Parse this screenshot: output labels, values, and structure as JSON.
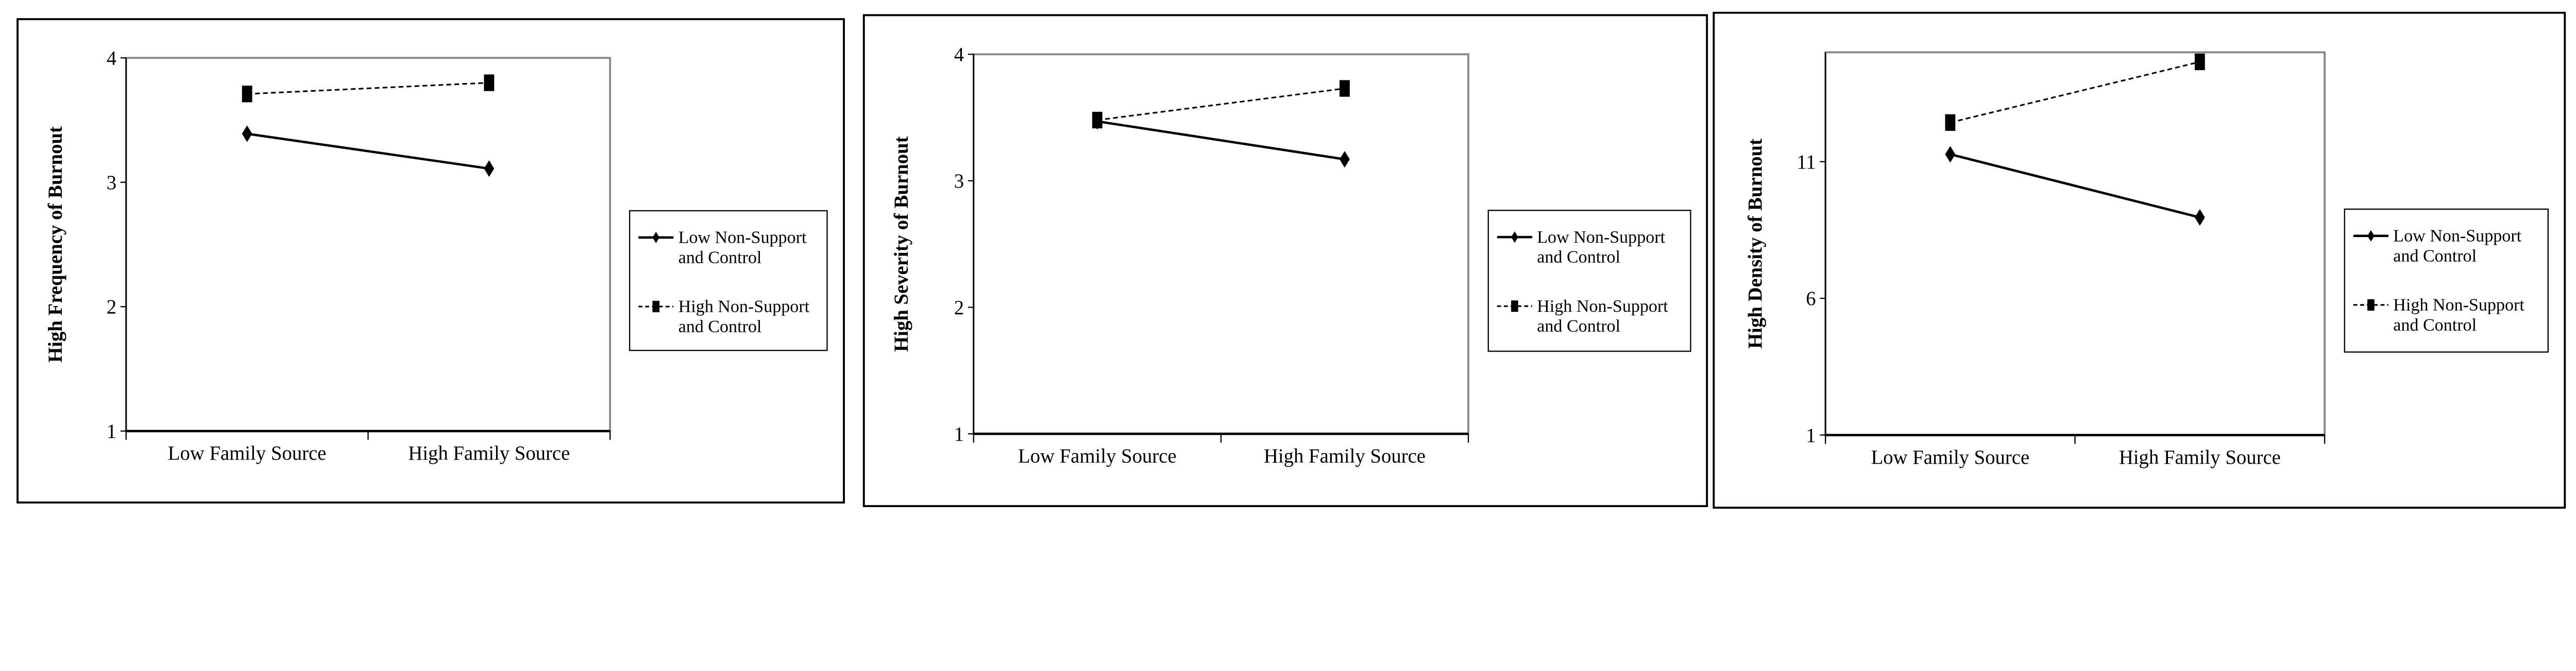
{
  "chart_data": [
    {
      "type": "line",
      "ylabel": "High Frequency of Burnout",
      "xlabel": "",
      "categories": [
        "Low Family Source",
        "High Family Source"
      ],
      "ylim": [
        1,
        4
      ],
      "yticks": [
        "1",
        "2",
        "3",
        "4"
      ],
      "grid": false,
      "legend_placement": "right",
      "series": [
        {
          "name_line1": "Low Non-Support",
          "name_line2": "and Control",
          "values": [
            3.39,
            3.11
          ],
          "style": "solid",
          "marker": "diamond"
        },
        {
          "name_line1": "High Non-Support",
          "name_line2": "and Control",
          "values": [
            3.71,
            3.8
          ],
          "style": "dashed",
          "marker": "square"
        }
      ]
    },
    {
      "type": "line",
      "ylabel": "High Severity of Burnout",
      "xlabel": "",
      "categories": [
        "Low Family Source",
        "High Family Source"
      ],
      "ylim": [
        1,
        4
      ],
      "yticks": [
        "1",
        "2",
        "3",
        "4"
      ],
      "grid": false,
      "legend_placement": "right",
      "series": [
        {
          "name_line1": "Low Non-Support",
          "name_line2": "and Control",
          "values": [
            3.47,
            3.17
          ],
          "style": "solid",
          "marker": "diamond"
        },
        {
          "name_line1": "High Non-Support",
          "name_line2": "and Control",
          "values": [
            3.48,
            3.73
          ],
          "style": "dashed",
          "marker": "square"
        }
      ]
    },
    {
      "type": "line",
      "ylabel": "High Density of Burnout",
      "xlabel": "",
      "categories": [
        "Low Family Source",
        "High Family Source"
      ],
      "ylim": [
        1,
        15
      ],
      "yticks": [
        "1",
        "6",
        "11"
      ],
      "grid": false,
      "legend_placement": "right",
      "series": [
        {
          "name_line1": "Low Non-Support",
          "name_line2": "and Control",
          "values": [
            11.27,
            8.96
          ],
          "style": "solid",
          "marker": "diamond"
        },
        {
          "name_line1": "High Non-Support",
          "name_line2": "and Control",
          "values": [
            12.43,
            14.65
          ],
          "style": "dashed",
          "marker": "square"
        }
      ]
    }
  ]
}
